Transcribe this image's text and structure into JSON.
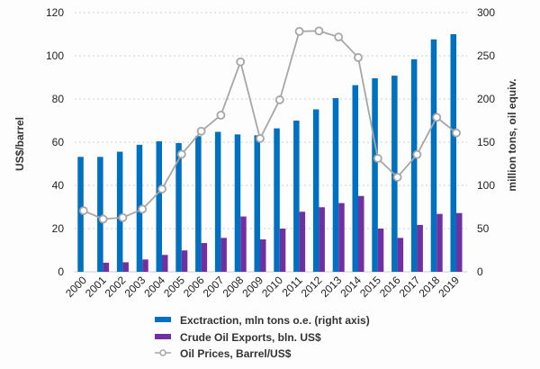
{
  "chart_data": {
    "type": "bar",
    "categories": [
      "2000",
      "2001",
      "2002",
      "2003",
      "2004",
      "2005",
      "2006",
      "2007",
      "2008",
      "2009",
      "2010",
      "2011",
      "2012",
      "2013",
      "2014",
      "2015",
      "2016",
      "2017",
      "2018",
      "2019"
    ],
    "ylabel": "US$/barrel",
    "y2label": "million tons, oil equiv.",
    "ylim": [
      0,
      120
    ],
    "y2lim": [
      0,
      300
    ],
    "yticks": [
      "0",
      "20",
      "40",
      "60",
      "80",
      "100",
      "120"
    ],
    "y2ticks": [
      "0",
      "50",
      "100",
      "150",
      "200",
      "250",
      "300"
    ],
    "grid": true,
    "legend_position": "bottom",
    "series": [
      {
        "name": "Exctraction, mln tons o.e. (right axis)",
        "type": "bar",
        "axis": "right",
        "color": "#0070c0",
        "values": [
          133,
          133,
          139,
          147,
          151,
          149,
          157,
          162,
          159,
          158,
          166,
          175,
          188,
          201,
          216,
          224,
          227,
          246,
          269,
          275
        ]
      },
      {
        "name": "Crude Oil Exports, bln. US$",
        "type": "bar",
        "axis": "left",
        "color": "#7030a0",
        "values": [
          0,
          4.2,
          4.4,
          5.7,
          7.8,
          9.9,
          13.3,
          15.7,
          25.6,
          15,
          20,
          27.8,
          29.9,
          31.8,
          35.1,
          20,
          15.7,
          21.7,
          26.8,
          27.2
        ]
      },
      {
        "name": "Oil Prices, Barrel/US$",
        "type": "line",
        "axis": "left",
        "color": "#a6a6a6",
        "values": [
          28.3,
          24.4,
          25.1,
          29,
          38.3,
          54.4,
          65.1,
          72.5,
          97.2,
          61.7,
          79.6,
          111.3,
          111.5,
          108.7,
          99.2,
          52.5,
          43.8,
          54.3,
          71.5,
          64.3
        ]
      }
    ]
  }
}
